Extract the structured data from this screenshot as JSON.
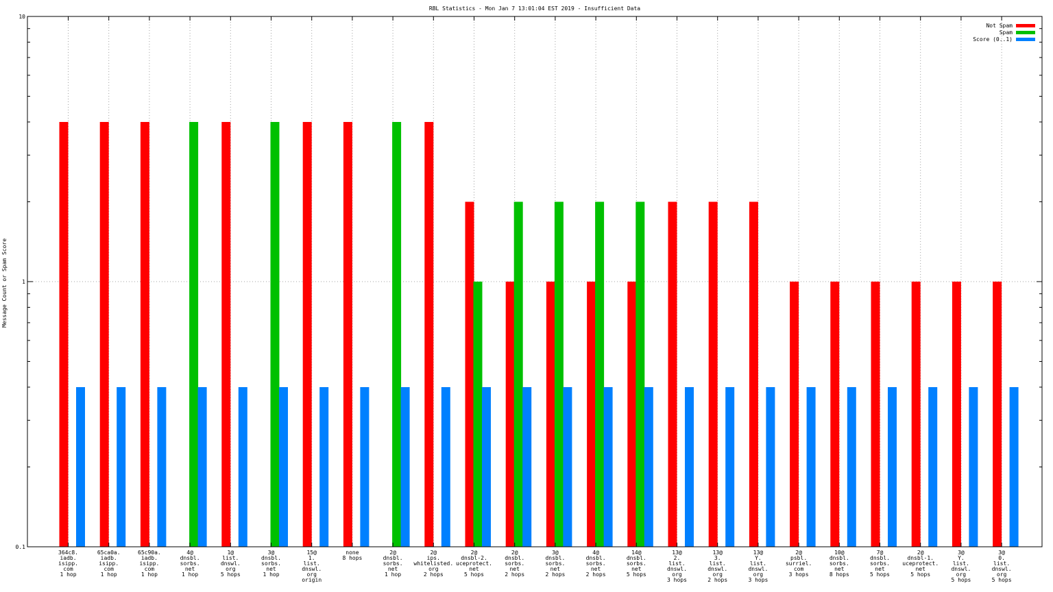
{
  "chart_data": {
    "type": "bar",
    "title": "RBL Statistics - Mon Jan  7 13:01:04 EST 2019 - Insufficient Data",
    "xlabel": "",
    "ylabel": "Message Count or Spam Score",
    "y_scale": "log",
    "ylim": [
      0.1,
      10
    ],
    "yticks": [
      "0.1",
      "1",
      "10"
    ],
    "grid": true,
    "legend_position": "top-right",
    "categories": [
      [
        "364c8.",
        "iadb.",
        "isipp.",
        "com",
        "1 hop"
      ],
      [
        "65ca0a.",
        "iadb.",
        "isipp.",
        "com",
        "1 hop"
      ],
      [
        "65c90a.",
        "iadb.",
        "isipp.",
        "com",
        "1 hop"
      ],
      [
        "4@",
        "dnsbl.",
        "sorbs.",
        "net",
        "1 hop"
      ],
      [
        "1@",
        "list.",
        "dnswl.",
        "org",
        "5 hops"
      ],
      [
        "3@",
        "dnsbl.",
        "sorbs.",
        "net",
        "1 hop"
      ],
      [
        "15@",
        "1.",
        "list.",
        "dnswl.",
        "org",
        "origin"
      ],
      [
        "none",
        "8 hops"
      ],
      [
        "2@",
        "dnsbl.",
        "sorbs.",
        "net",
        "1 hop"
      ],
      [
        "2@",
        "ips.",
        "whitelisted.",
        "org",
        "2 hops"
      ],
      [
        "2@",
        "dnsbl-2.",
        "uceprotect.",
        "net",
        "5 hops"
      ],
      [
        "2@",
        "dnsbl.",
        "sorbs.",
        "net",
        "2 hops"
      ],
      [
        "3@",
        "dnsbl.",
        "sorbs.",
        "net",
        "2 hops"
      ],
      [
        "4@",
        "dnsbl.",
        "sorbs.",
        "net",
        "2 hops"
      ],
      [
        "14@",
        "dnsbl.",
        "sorbs.",
        "net",
        "5 hops"
      ],
      [
        "13@",
        "2.",
        "list.",
        "dnswl.",
        "org",
        "3 hops"
      ],
      [
        "13@",
        "3.",
        "list.",
        "dnswl.",
        "org",
        "2 hops"
      ],
      [
        "13@",
        "Y.",
        "list.",
        "dnswl.",
        "org",
        "3 hops"
      ],
      [
        "2@",
        "psbl.",
        "surriel.",
        "com",
        "3 hops"
      ],
      [
        "10@",
        "dnsbl.",
        "sorbs.",
        "net",
        "8 hops"
      ],
      [
        "7@",
        "dnsbl.",
        "sorbs.",
        "net",
        "5 hops"
      ],
      [
        "2@",
        "dnsbl-1.",
        "uceprotect.",
        "net",
        "5 hops"
      ],
      [
        "3@",
        "Y.",
        "list.",
        "dnswl.",
        "org",
        "5 hops"
      ],
      [
        "3@",
        "0.",
        "list.",
        "dnswl.",
        "org",
        "5 hops"
      ]
    ],
    "series": [
      {
        "name": "Not Spam",
        "color": "#ff0000",
        "values": [
          4,
          4,
          4,
          null,
          4,
          null,
          4,
          4,
          null,
          4,
          2,
          1,
          1,
          1,
          1,
          2,
          2,
          2,
          1,
          1,
          1,
          1,
          1,
          1
        ]
      },
      {
        "name": "Spam",
        "color": "#00c000",
        "values": [
          null,
          null,
          null,
          4,
          null,
          4,
          null,
          null,
          4,
          null,
          1,
          2,
          2,
          2,
          2,
          null,
          null,
          null,
          null,
          null,
          null,
          null,
          null,
          null
        ]
      },
      {
        "name": "Score (0..1)",
        "color": "#0080ff",
        "values": [
          0.4,
          0.4,
          0.4,
          0.4,
          0.4,
          0.4,
          0.4,
          0.4,
          0.4,
          0.4,
          0.4,
          0.4,
          0.4,
          0.4,
          0.4,
          0.4,
          0.4,
          0.4,
          0.4,
          0.4,
          0.4,
          0.4,
          0.4,
          0.4
        ]
      }
    ]
  }
}
